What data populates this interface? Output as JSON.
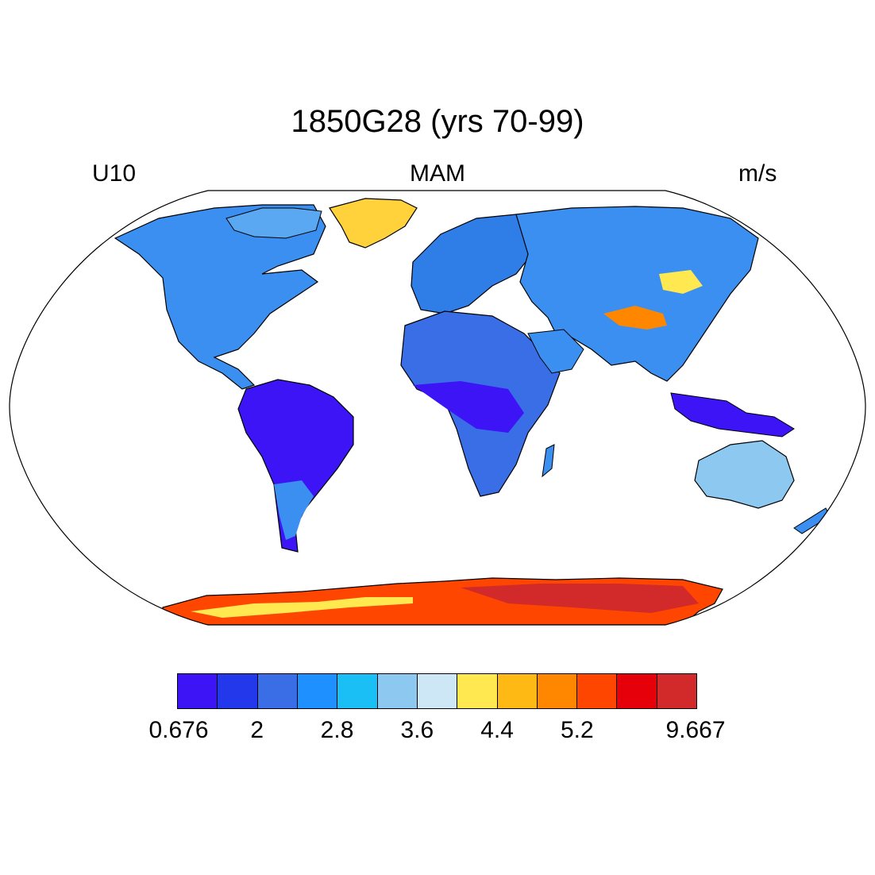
{
  "title": "1850G28 (yrs 70-99)",
  "variable": "U10",
  "season": "MAM",
  "units": "m/s",
  "colorbar": {
    "colors": [
      "#3d14f5",
      "#2438eb",
      "#3a6ee6",
      "#1e90ff",
      "#19bff5",
      "#8cc8ef",
      "#cde7f7",
      "#ffe850",
      "#ffb914",
      "#ff8700",
      "#ff4600",
      "#e6000a",
      "#d22a2a"
    ],
    "labels": [
      "0.676",
      "2",
      "2.8",
      "3.6",
      "4.4",
      "5.2",
      "9.667"
    ]
  },
  "map": {
    "projection": "Robinson",
    "ocean_fill": "#ffffff",
    "coastline_color": "#000000"
  }
}
